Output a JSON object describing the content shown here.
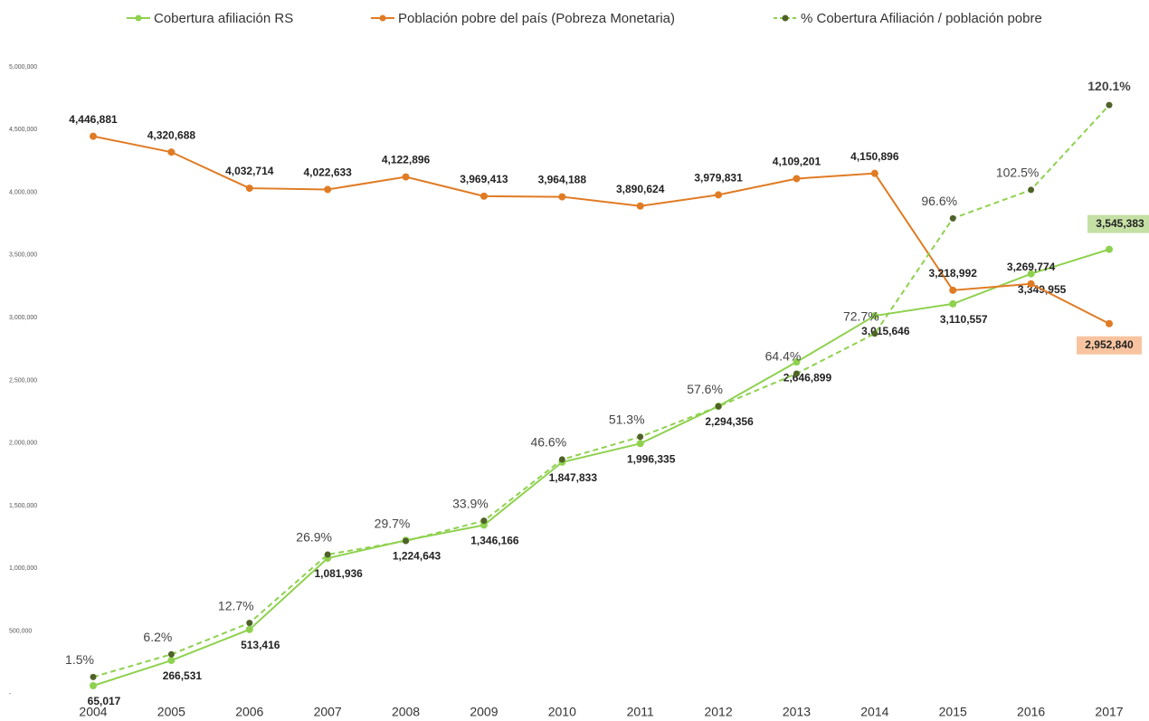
{
  "chart_data": {
    "type": "line",
    "categories": [
      "2004",
      "2005",
      "2006",
      "2007",
      "2008",
      "2009",
      "2010",
      "2011",
      "2012",
      "2013",
      "2014",
      "2015",
      "2016",
      "2017"
    ],
    "series": [
      {
        "name": "Cobertura afiliación RS",
        "color": "#8fd14f",
        "values": [
          65017,
          266531,
          513416,
          1081936,
          1224643,
          1346166,
          1847833,
          1996335,
          2294356,
          2646899,
          3015646,
          3110557,
          3349955,
          3545383
        ],
        "value_labels": [
          "65,017",
          "266,531",
          "513,416",
          "1,081,936",
          "1,224,643",
          "1,346,166",
          "1,847,833",
          "1,996,335",
          "2,294,356",
          "2,646,899",
          "3,015,646",
          "3,110,557",
          "3,349,955",
          "3,545,383"
        ]
      },
      {
        "name": "Población pobre del país (Pobreza Monetaria)",
        "color": "#e07b24",
        "values": [
          4446881,
          4320688,
          4032714,
          4022633,
          4122896,
          3969413,
          3964188,
          3890624,
          3979831,
          4109201,
          4150896,
          3218992,
          3269774,
          2952840
        ],
        "value_labels": [
          "4,446,881",
          "4,320,688",
          "4,032,714",
          "4,022,633",
          "4,122,896",
          "3,969,413",
          "3,964,188",
          "3,890,624",
          "3,979,831",
          "4,109,201",
          "4,150,896",
          "3,218,992",
          "3,269,774",
          "2,952,840"
        ]
      },
      {
        "name": "% Cobertura Afiliación / población pobre",
        "color": "#4f6228",
        "axis": "y2",
        "dashed": true,
        "values": [
          1.5,
          6.2,
          12.7,
          26.9,
          29.7,
          33.9,
          46.6,
          51.3,
          57.6,
          64.4,
          72.7,
          96.6,
          102.5,
          120.1
        ],
        "value_labels": [
          "1.5%",
          "6.2%",
          "12.7%",
          "26.9%",
          "29.7%",
          "33.9%",
          "46.6%",
          "51.3%",
          "57.6%",
          "64.4%",
          "72.7%",
          "96.6%",
          "102.5%",
          "120.1%"
        ]
      }
    ],
    "ylim": [
      0,
      5000000
    ],
    "yticks": [
      {
        "value": 0,
        "label": "-"
      },
      {
        "value": 500000,
        "label": "500,000"
      },
      {
        "value": 1000000,
        "label": "1,000,000"
      },
      {
        "value": 1500000,
        "label": "1,500,000"
      },
      {
        "value": 2000000,
        "label": "2,000,000"
      },
      {
        "value": 2500000,
        "label": "2,500,000"
      },
      {
        "value": 3000000,
        "label": "3,000,000"
      },
      {
        "value": 3500000,
        "label": "3,500,000"
      },
      {
        "value": 4000000,
        "label": "4,000,000"
      },
      {
        "value": 4500000,
        "label": "4,500,000"
      },
      {
        "value": 5000000,
        "label": "5,000,000"
      }
    ],
    "y2lim": [
      -2,
      128
    ],
    "legend": "top"
  }
}
